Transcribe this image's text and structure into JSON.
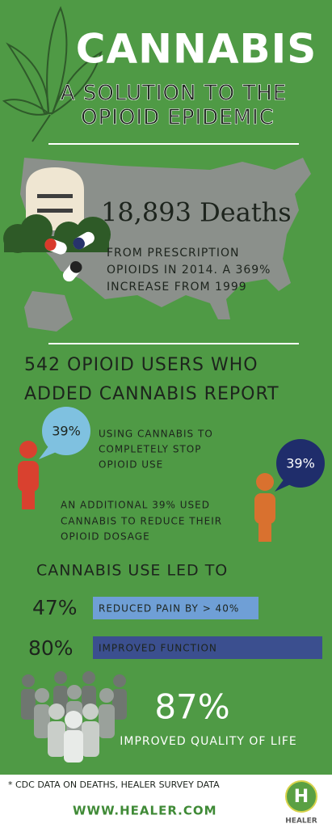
{
  "title": "CANNABIS",
  "subtitle_lines": [
    "A SOLUTION TO THE",
    "OPIOID EPIDEMIC"
  ],
  "deaths": {
    "headline": "18,893 Deaths",
    "lines": [
      "FROM PRESCRIPTION",
      "OPIOIDS IN 2014.  A 369%",
      "INCREASE FROM 1999"
    ]
  },
  "report": {
    "heading_lines": [
      "542 OPIOID USERS WHO",
      "ADDED CANNABIS REPORT"
    ],
    "stop": {
      "bubble": "39%",
      "lines": [
        "USING CANNABIS TO",
        "COMPLETELY STOP",
        "OPIOID USE"
      ]
    },
    "reduce": {
      "bubble": "39%",
      "lines": [
        "AN ADDITIONAL 39% USED",
        "CANNABIS TO REDUCE THEIR",
        "OPIOID DOSAGE"
      ]
    }
  },
  "outcomes": {
    "heading": "CANNABIS USE LED TO",
    "items": [
      {
        "percent": "47%",
        "label": "REDUCED PAIN BY > 40%"
      },
      {
        "percent": "80%",
        "label": "IMPROVED FUNCTION"
      }
    ]
  },
  "quality": {
    "percent": "87%",
    "label": "IMPROVED QUALITY OF LIFE"
  },
  "footer": {
    "note": "* CDC DATA ON DEATHS, HEALER SURVEY DATA",
    "url": "WWW.HEALER.COM",
    "logo_letter": "H",
    "logo_name": "HEALER"
  }
}
